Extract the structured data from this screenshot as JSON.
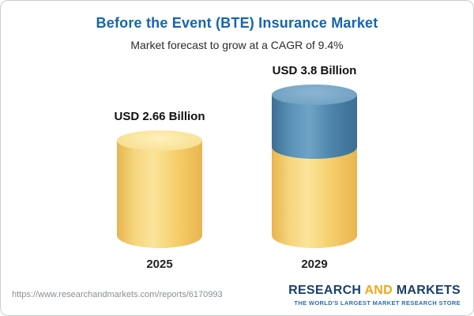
{
  "header": {
    "title": "Before the Event (BTE) Insurance Market",
    "subtitle": "Market forecast to grow at a CAGR of 9.4%"
  },
  "chart_data": {
    "type": "bar",
    "bar_style": "3d-cylinder",
    "title": "Before the Event (BTE) Insurance Market",
    "subtitle": "Market forecast to grow at a CAGR of 9.4%",
    "cagr": "9.4%",
    "categories": [
      "2025",
      "2029"
    ],
    "values": [
      2.66,
      3.8
    ],
    "unit": "USD Billion",
    "value_labels": [
      "USD 2.66 Billion",
      "USD 3.8 Billion"
    ],
    "colors": {
      "base_bar": "#F3CD6E",
      "growth_segment": "#4E84AA"
    },
    "legend": "none",
    "grid": false,
    "ylim": [
      0,
      4
    ]
  },
  "footer": {
    "url": "https://www.researchandmarkets.com/reports/6170993",
    "logo": {
      "word1": "RESEARCH",
      "word2": "AND",
      "word3": "MARKETS",
      "tagline": "THE WORLD'S LARGEST MARKET RESEARCH STORE"
    }
  }
}
